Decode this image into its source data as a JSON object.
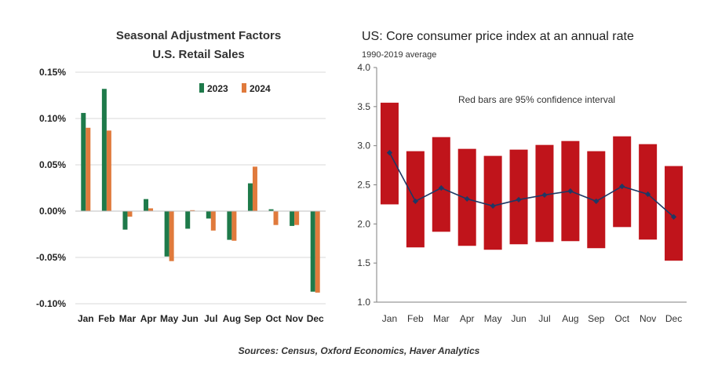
{
  "chart_data": [
    {
      "type": "bar",
      "title": "Seasonal Adjustment Factors",
      "subtitle": "U.S. Retail Sales",
      "categories": [
        "Jan",
        "Feb",
        "Mar",
        "Apr",
        "May",
        "Jun",
        "Jul",
        "Aug",
        "Sep",
        "Oct",
        "Nov",
        "Dec"
      ],
      "series": [
        {
          "name": "2023",
          "color": "#1e7a4a",
          "values": [
            0.106,
            0.132,
            -0.02,
            0.013,
            -0.049,
            -0.019,
            -0.008,
            -0.031,
            0.03,
            0.002,
            -0.016,
            -0.087
          ]
        },
        {
          "name": "2024",
          "color": "#e07a3c",
          "values": [
            0.09,
            0.087,
            -0.006,
            0.003,
            -0.054,
            0.001,
            -0.021,
            -0.032,
            0.048,
            -0.015,
            -0.015,
            -0.088
          ]
        }
      ],
      "ylim": [
        -0.1,
        0.15
      ],
      "yticks": [
        "0.15%",
        "0.10%",
        "0.05%",
        "0.00%",
        "-0.05%",
        "-0.10%"
      ],
      "ytick_values": [
        0.15,
        0.1,
        0.05,
        0.0,
        -0.05,
        -0.1
      ],
      "grid": true,
      "legend_position": "top-center"
    },
    {
      "type": "bar",
      "title": "US: Core consumer price index at an annual rate",
      "subtitle": "1990-2019 average",
      "annotation": "Red bars are 95% confidence interval",
      "categories": [
        "Jan",
        "Feb",
        "Mar",
        "Apr",
        "May",
        "Jun",
        "Jul",
        "Aug",
        "Sep",
        "Oct",
        "Nov",
        "Dec"
      ],
      "ranges": [
        [
          2.25,
          3.55
        ],
        [
          1.7,
          2.93
        ],
        [
          1.9,
          3.11
        ],
        [
          1.72,
          2.96
        ],
        [
          1.67,
          2.87
        ],
        [
          1.74,
          2.95
        ],
        [
          1.77,
          3.01
        ],
        [
          1.78,
          3.06
        ],
        [
          1.69,
          2.93
        ],
        [
          1.96,
          3.12
        ],
        [
          1.8,
          3.02
        ],
        [
          1.53,
          2.74
        ]
      ],
      "mean": [
        2.91,
        2.29,
        2.46,
        2.32,
        2.23,
        2.31,
        2.37,
        2.42,
        2.29,
        2.48,
        2.38,
        2.09
      ],
      "bar_color": "#c0141b",
      "line_color": "#1f3864",
      "ylim": [
        1.0,
        4.0
      ],
      "yticks": [
        "4.0",
        "3.5",
        "3.0",
        "2.5",
        "2.0",
        "1.5",
        "1.0"
      ],
      "ytick_values": [
        4.0,
        3.5,
        3.0,
        2.5,
        2.0,
        1.5,
        1.0
      ],
      "grid": false
    }
  ],
  "source": "Sources: Census, Oxford Economics, Haver Analytics"
}
